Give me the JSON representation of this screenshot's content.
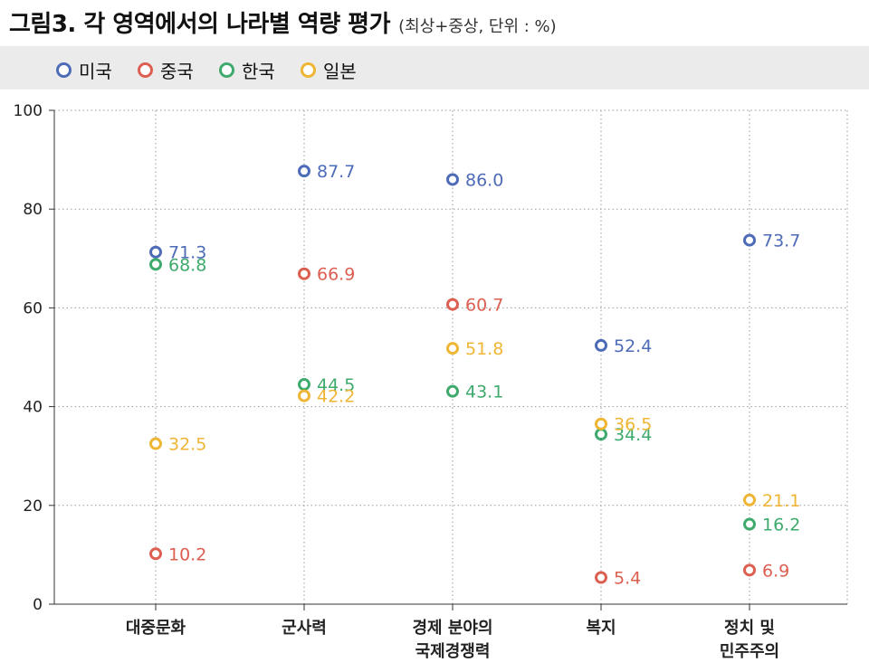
{
  "title": {
    "main": "그림3. 각 영역에서의 나라별 역량 평가",
    "sub": "(최상+중상, 단위 : %)"
  },
  "colors": {
    "미국": "#4e6bb8",
    "중국": "#dc5f52",
    "한국": "#3faa6d",
    "일본": "#efb534"
  },
  "chart_data": {
    "type": "scatter",
    "categories": [
      [
        "대중문화"
      ],
      [
        "군사력"
      ],
      [
        "경제 분야의",
        "국제경쟁력"
      ],
      [
        "복지"
      ],
      [
        "정치 및",
        "민주주의"
      ]
    ],
    "series": [
      {
        "name": "미국",
        "values": [
          71.3,
          87.7,
          86.0,
          52.4,
          73.7
        ],
        "labels": [
          "71.3",
          "87.7",
          "86.0",
          "52.4",
          "73.7"
        ]
      },
      {
        "name": "중국",
        "values": [
          10.2,
          66.9,
          60.7,
          5.4,
          6.9
        ],
        "labels": [
          "10.2",
          "66.9",
          "60.7",
          "5.4",
          "6.9"
        ]
      },
      {
        "name": "한국",
        "values": [
          68.8,
          44.5,
          43.1,
          34.4,
          16.2
        ],
        "labels": [
          "68.8",
          "44.5",
          "43.1",
          "34.4",
          "16.2"
        ]
      },
      {
        "name": "일본",
        "values": [
          32.5,
          42.2,
          51.8,
          36.5,
          21.1
        ],
        "labels": [
          "32.5",
          "42.2",
          "51.8",
          "36.5",
          "21.1"
        ]
      }
    ],
    "yticks": [
      "0",
      "20",
      "40",
      "60",
      "80",
      "100"
    ],
    "ylim": [
      0,
      100
    ],
    "grid": true,
    "legend": "top-left"
  }
}
